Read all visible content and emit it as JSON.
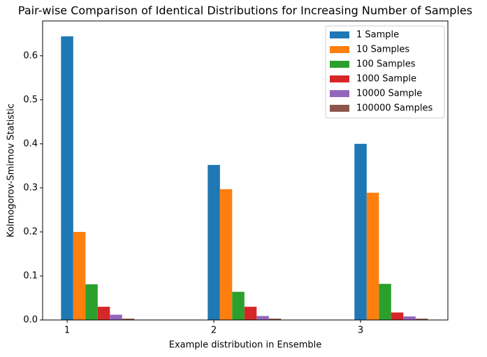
{
  "chart_data": {
    "type": "bar",
    "title": "Pair-wise Comparison of Identical Distributions for Increasing Number of Samples",
    "x_label": "Example distribution in Ensemble",
    "y_label": "Kolmogorov-Smirnov Statistic",
    "x": [
      1,
      2,
      3
    ],
    "xlim": [
      0.833,
      3.595
    ],
    "xticks": [
      1,
      2,
      3
    ],
    "ylim": [
      0,
      0.679
    ],
    "yticks": [
      {
        "value": 0,
        "label": "0.0"
      },
      0.1,
      0.2,
      0.3,
      0.4,
      0.5,
      0.6
    ],
    "legend": "upper right",
    "series": [
      {
        "name": "1 Sample",
        "color": "#1f77b4",
        "values": [
          0.644,
          0.352,
          0.4
        ]
      },
      {
        "name": "10 Samples",
        "color": "#ff7f0e",
        "values": [
          0.2,
          0.297,
          0.289
        ]
      },
      {
        "name": "100 Samples",
        "color": "#2ca02c",
        "values": [
          0.081,
          0.064,
          0.082
        ]
      },
      {
        "name": "1000 Sample",
        "color": "#d62728",
        "values": [
          0.03,
          0.03,
          0.017
        ]
      },
      {
        "name": "10000 Sample",
        "color": "#9467bd",
        "values": [
          0.012,
          0.009,
          0.008
        ]
      },
      {
        "name": "100000 Samples",
        "color": "#8c564b",
        "values": [
          0.003,
          0.003,
          0.003
        ]
      }
    ]
  }
}
